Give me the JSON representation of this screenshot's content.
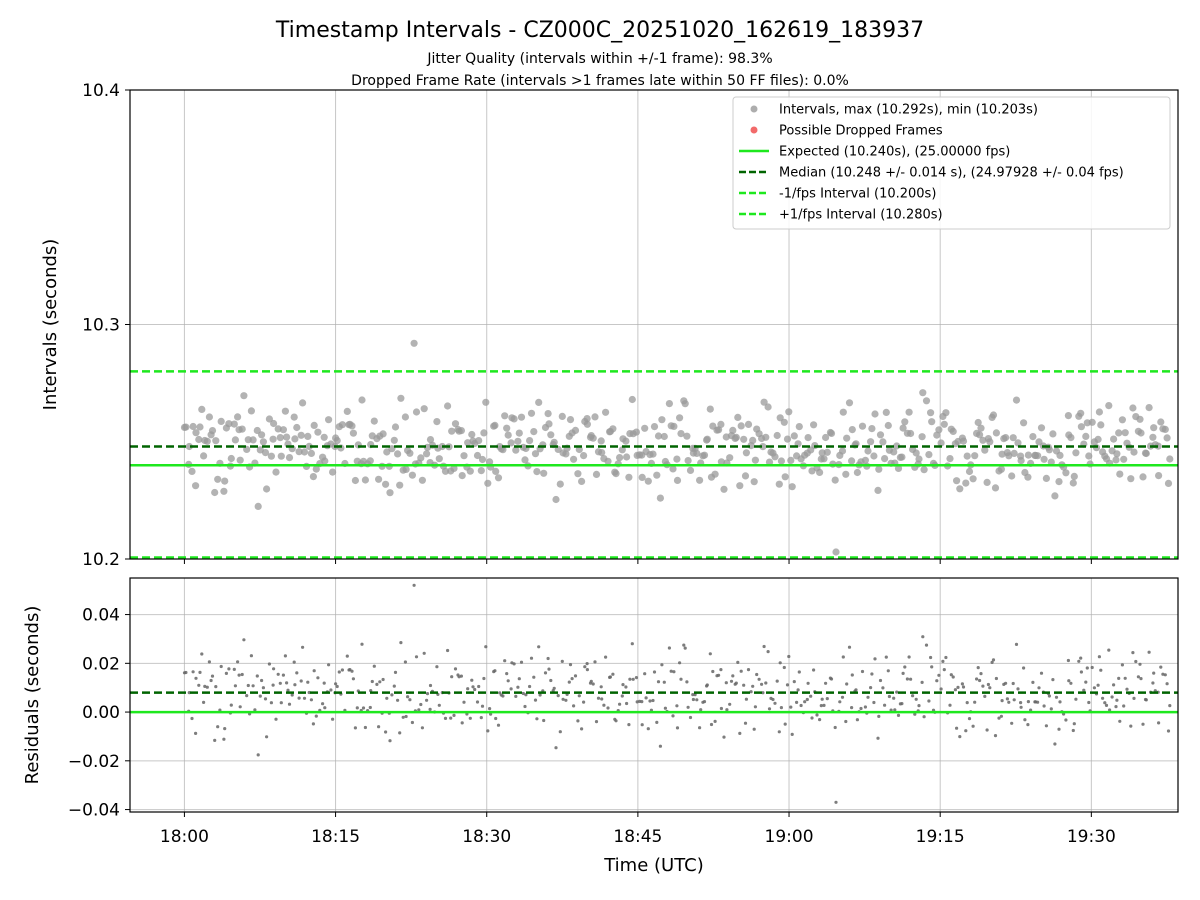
{
  "chart_data": {
    "type": "scatter",
    "title": "Timestamp Intervals - CZ000C_20251020_162619_183937",
    "subtitle_1": "Jitter Quality (intervals within +/-1 frame): 98.3%",
    "subtitle_2": "Dropped Frame Rate (intervals >1 frames late within 50 FF files): 0.0%",
    "xlabel": "Time (UTC)",
    "x_ticks": [
      "18:00",
      "18:15",
      "18:30",
      "18:45",
      "19:00",
      "19:15",
      "19:30"
    ],
    "x_range_minutes": [
      -5.4,
      98.6
    ],
    "top": {
      "ylabel": "Intervals (seconds)",
      "ylim": [
        10.2,
        10.4
      ],
      "y_ticks": [
        "10.2",
        "10.3",
        "10.4"
      ],
      "expected": 10.24,
      "median": 10.248,
      "minus_interval": 10.2,
      "plus_interval": 10.28,
      "max_point": 10.292,
      "min_point": 10.203,
      "legend": [
        "Intervals, max (10.292s), min (10.203s)",
        "Possible Dropped Frames",
        "Expected (10.240s), (25.00000 fps)",
        "Median (10.248 +/- 0.014 s), (24.97928 +/- 0.04 fps)",
        "-1/fps Interval (10.200s)",
        "+1/fps Interval (10.280s)"
      ],
      "legend_position": "top-right"
    },
    "bottom": {
      "ylabel": "Residuals (seconds)",
      "ylim": [
        -0.041,
        0.055
      ],
      "y_ticks": [
        "−0.04",
        "−0.02",
        "0.00",
        "0.02",
        "0.04"
      ],
      "y_tick_values": [
        -0.04,
        -0.02,
        0.0,
        0.02,
        0.04
      ],
      "zero": 0.0,
      "median_residual": 0.008
    },
    "n_points": 560,
    "colors": {
      "points": "#999999",
      "residual_points": "#666666",
      "dropped": "#f05050",
      "expected": "#1ee81e",
      "median": "#006400",
      "interval": "#1ee81e",
      "grid": "#b0b0b0"
    }
  }
}
